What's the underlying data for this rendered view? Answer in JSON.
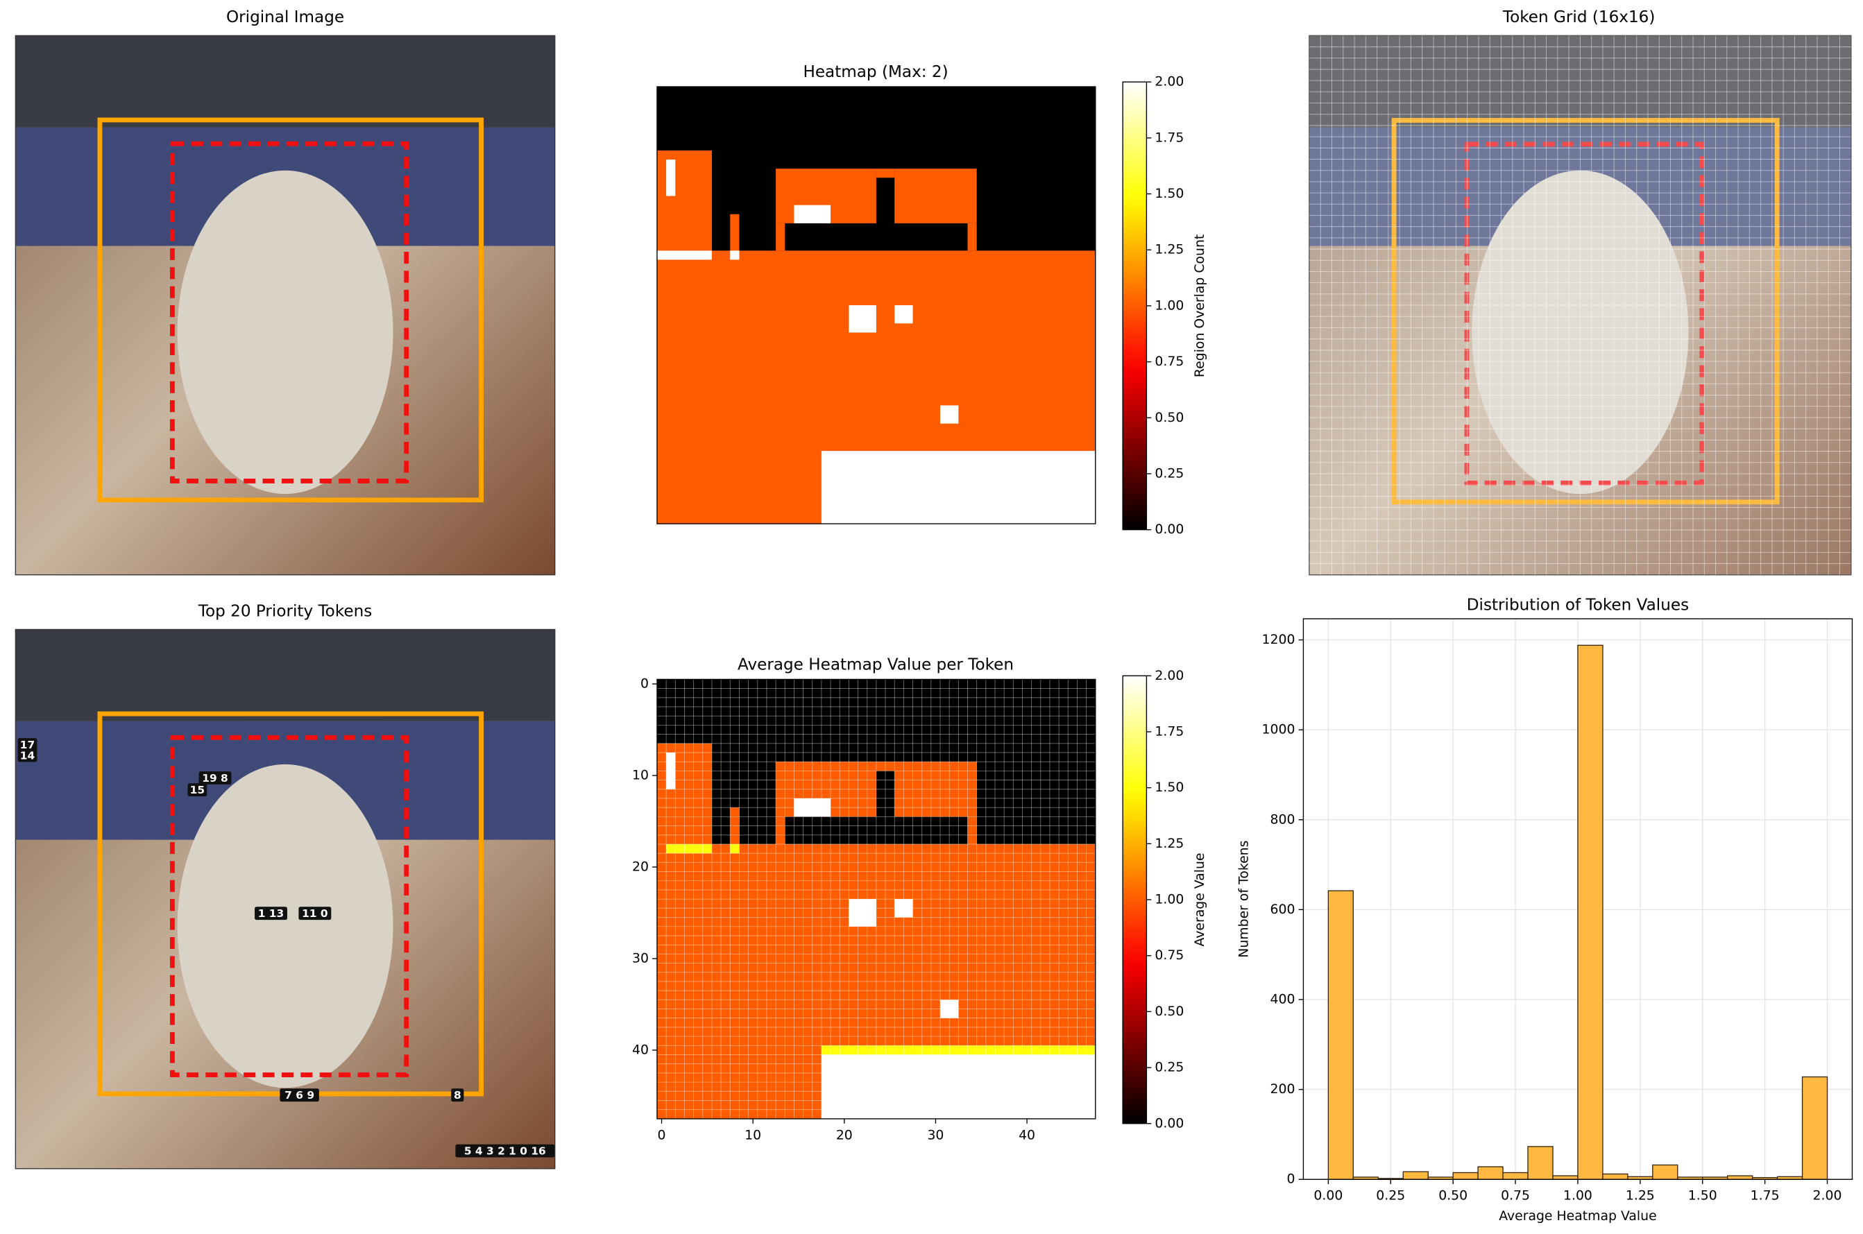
{
  "chart_data": [
    {
      "type": "image",
      "title": "Original Image"
    },
    {
      "type": "heatmap",
      "title": "Heatmap (Max: 2)",
      "colorbar_label": "Region Overlap Count",
      "xlim": [
        -0.5,
        47.5
      ],
      "ylim": [
        47.5,
        -0.5
      ],
      "clim": [
        0,
        2
      ],
      "background": 0,
      "regions": [
        {
          "x": [
            -0.5,
            47.5
          ],
          "y": [
            17.5,
            47.5
          ],
          "value": 1
        },
        {
          "x": [
            17.5,
            47.5
          ],
          "y": [
            39.5,
            47.5
          ],
          "value": 2
        },
        {
          "x": [
            -0.5,
            5.5
          ],
          "y": [
            6.5,
            17.5
          ],
          "value": 1
        },
        {
          "x": [
            0.5,
            1.5
          ],
          "y": [
            7.5,
            11.5
          ],
          "value": 2
        },
        {
          "x": [
            -0.5,
            5.5
          ],
          "y": [
            17.5,
            18.5
          ],
          "value": 2
        },
        {
          "x": [
            7.5,
            8.5
          ],
          "y": [
            13.5,
            18.5
          ],
          "value": 1
        },
        {
          "x": [
            7.5,
            8.5
          ],
          "y": [
            17.5,
            18.5
          ],
          "value": 2
        },
        {
          "x": [
            12.5,
            23.5
          ],
          "y": [
            8.5,
            14.5
          ],
          "value": 1
        },
        {
          "x": [
            12.5,
            13.5
          ],
          "y": [
            14.5,
            17.5
          ],
          "value": 1
        },
        {
          "x": [
            23.5,
            25.5
          ],
          "y": [
            8.5,
            9.5
          ],
          "value": 1
        },
        {
          "x": [
            25.5,
            34.5
          ],
          "y": [
            8.5,
            14.5
          ],
          "value": 1
        },
        {
          "x": [
            33.5,
            34.5
          ],
          "y": [
            14.5,
            17.5
          ],
          "value": 1
        },
        {
          "x": [
            14.5,
            18.5
          ],
          "y": [
            12.5,
            14.5
          ],
          "value": 2
        },
        {
          "x": [
            20.5,
            23.5
          ],
          "y": [
            23.5,
            26.5
          ],
          "value": 2
        },
        {
          "x": [
            25.5,
            27.5
          ],
          "y": [
            23.5,
            25.5
          ],
          "value": 2
        },
        {
          "x": [
            30.5,
            32.5
          ],
          "y": [
            34.5,
            36.5
          ],
          "value": 2
        }
      ],
      "cticks": [
        {
          "value": 0,
          "label": "0.00"
        },
        {
          "value": 0.25,
          "label": "0.25"
        },
        {
          "value": 0.5,
          "label": "0.50"
        },
        {
          "value": 0.75,
          "label": "0.75"
        },
        {
          "value": 1,
          "label": "1.00"
        },
        {
          "value": 1.25,
          "label": "1.25"
        },
        {
          "value": 1.5,
          "label": "1.50"
        },
        {
          "value": 1.75,
          "label": "1.75"
        },
        {
          "value": 2,
          "label": "2.00"
        }
      ]
    },
    {
      "type": "image",
      "title": "Token Grid (16x16)",
      "token_grid": true
    },
    {
      "type": "image",
      "title": "Top 20 Priority Tokens",
      "annotations": [
        "17",
        "14",
        "19 8",
        "15",
        "1 13",
        "11 0",
        "7 6 9",
        "8",
        "5 4 3 2 1 0 16"
      ]
    },
    {
      "type": "heatmap",
      "title": "Average Heatmap Value per Token",
      "colorbar_label": "Average Value",
      "xlim": [
        -0.5,
        47.5
      ],
      "ylim": [
        47.5,
        -0.5
      ],
      "clim": [
        0,
        2
      ],
      "background": 0,
      "grid": true,
      "xticks": [
        0,
        10,
        20,
        30,
        40
      ],
      "yticks": [
        0,
        10,
        20,
        30,
        40
      ],
      "regions": [
        {
          "x": [
            -0.5,
            47.5
          ],
          "y": [
            17.5,
            47.5
          ],
          "value": 1
        },
        {
          "x": [
            17.5,
            47.5
          ],
          "y": [
            39.5,
            40.5
          ],
          "value": 1.5
        },
        {
          "x": [
            17.5,
            47.5
          ],
          "y": [
            40.5,
            47.5
          ],
          "value": 2
        },
        {
          "x": [
            -0.5,
            5.5
          ],
          "y": [
            6.5,
            17.5
          ],
          "value": 1
        },
        {
          "x": [
            0.5,
            1.5
          ],
          "y": [
            7.5,
            11.5
          ],
          "value": 2
        },
        {
          "x": [
            0.5,
            5.5
          ],
          "y": [
            17.5,
            18.5
          ],
          "value": 1.5
        },
        {
          "x": [
            7.5,
            8.5
          ],
          "y": [
            13.5,
            17.5
          ],
          "value": 1
        },
        {
          "x": [
            7.5,
            8.5
          ],
          "y": [
            17.5,
            18.5
          ],
          "value": 1.5
        },
        {
          "x": [
            12.5,
            23.5
          ],
          "y": [
            8.5,
            14.5
          ],
          "value": 1
        },
        {
          "x": [
            12.5,
            13.5
          ],
          "y": [
            14.5,
            17.5
          ],
          "value": 1
        },
        {
          "x": [
            23.5,
            25.5
          ],
          "y": [
            8.5,
            9.5
          ],
          "value": 1
        },
        {
          "x": [
            25.5,
            34.5
          ],
          "y": [
            8.5,
            14.5
          ],
          "value": 1
        },
        {
          "x": [
            33.5,
            34.5
          ],
          "y": [
            14.5,
            17.5
          ],
          "value": 1
        },
        {
          "x": [
            14.5,
            18.5
          ],
          "y": [
            12.5,
            14.5
          ],
          "value": 2
        },
        {
          "x": [
            20.5,
            23.5
          ],
          "y": [
            23.5,
            26.5
          ],
          "value": 2
        },
        {
          "x": [
            25.5,
            27.5
          ],
          "y": [
            23.5,
            25.5
          ],
          "value": 2
        },
        {
          "x": [
            30.5,
            32.5
          ],
          "y": [
            34.5,
            36.5
          ],
          "value": 2
        }
      ],
      "cticks": [
        {
          "value": 0,
          "label": "0.00"
        },
        {
          "value": 0.25,
          "label": "0.25"
        },
        {
          "value": 0.5,
          "label": "0.50"
        },
        {
          "value": 0.75,
          "label": "0.75"
        },
        {
          "value": 1,
          "label": "1.00"
        },
        {
          "value": 1.25,
          "label": "1.25"
        },
        {
          "value": 1.5,
          "label": "1.50"
        },
        {
          "value": 1.75,
          "label": "1.75"
        },
        {
          "value": 2,
          "label": "2.00"
        }
      ]
    },
    {
      "type": "histogram",
      "title": "Distribution of Token Values",
      "x_label": "Average Heatmap Value",
      "y_label": "Number of Tokens",
      "bins": [
        0,
        0.1,
        0.2,
        0.3,
        0.4,
        0.5,
        0.6,
        0.7,
        0.8,
        0.9,
        1.0,
        1.1,
        1.2,
        1.3,
        1.4,
        1.5,
        1.6,
        1.7,
        1.8,
        1.9,
        2.0
      ],
      "values": [
        642,
        5,
        2,
        17,
        5,
        15,
        28,
        15,
        73,
        8,
        1188,
        12,
        6,
        32,
        5,
        5,
        8,
        4,
        6,
        228
      ],
      "color": "#ffb940",
      "edge_color": "#3a2a10",
      "grid": true,
      "xlim": [
        -0.1,
        2.1
      ],
      "ylim": [
        0,
        1247
      ],
      "xticks": [
        {
          "value": 0,
          "label": "0.00"
        },
        {
          "value": 0.25,
          "label": "0.25"
        },
        {
          "value": 0.5,
          "label": "0.50"
        },
        {
          "value": 0.75,
          "label": "0.75"
        },
        {
          "value": 1,
          "label": "1.00"
        },
        {
          "value": 1.25,
          "label": "1.25"
        },
        {
          "value": 1.5,
          "label": "1.50"
        },
        {
          "value": 1.75,
          "label": "1.75"
        },
        {
          "value": 2,
          "label": "2.00"
        }
      ],
      "yticks": [
        0,
        200,
        400,
        600,
        800,
        1000,
        1200
      ]
    }
  ]
}
